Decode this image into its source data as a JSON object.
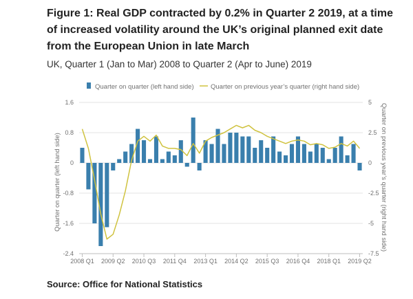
{
  "header": {
    "title": "Figure 1: Real GDP contracted by 0.2% in Quarter 2 2019, at a time of increased volatility around the UK’s original planned exit date from the European Union in late March",
    "subtitle": "UK, Quarter 1 (Jan to Mar) 2008 to Quarter 2 (Apr to June) 2019"
  },
  "footer": {
    "source": "Source: Office for National Statistics"
  },
  "chart_data": {
    "type": "bar",
    "title": "Figure 1: Real GDP contracted by 0.2% in Quarter 2 2019, at a time of increased volatility around the UK’s original planned exit date from the European Union in late March",
    "subtitle": "UK, Quarter 1 (Jan to Mar) 2008 to Quarter 2 (Apr to June) 2019",
    "xlabel": "",
    "ylabel_left": "Quarter on quarter (left hand side)",
    "ylabel_right": "Quarter on previous year’s quarter (right hand side)",
    "ylim_left": [
      -2.4,
      1.6
    ],
    "ylim_right": [
      -7.5,
      5
    ],
    "yticks_left": [
      "1.6",
      "0.8",
      "0",
      "-0.8",
      "-1.6",
      "-2.4"
    ],
    "yticks_left_values": [
      1.6,
      0.8,
      0,
      -0.8,
      -1.6,
      -2.4
    ],
    "yticks_right": [
      "5",
      "2.5",
      "0",
      "-2.5",
      "-5",
      "-7.5"
    ],
    "yticks_right_values": [
      5,
      2.5,
      0,
      -2.5,
      -5,
      -7.5
    ],
    "xtick_labels": [
      "2008 Q1",
      "2009 Q2",
      "2010 Q3",
      "2011 Q4",
      "2013 Q1",
      "2014 Q2",
      "2015 Q3",
      "2016 Q4",
      "2018 Q1",
      "2019 Q2"
    ],
    "xtick_indices": [
      0,
      5,
      10,
      15,
      20,
      25,
      30,
      35,
      40,
      45
    ],
    "legend_position": "top",
    "colors": {
      "bars": "#3a7fad",
      "line": "#cfc23e",
      "grid": "#e3e3e3"
    },
    "categories": [
      "2008 Q1",
      "2008 Q2",
      "2008 Q3",
      "2008 Q4",
      "2009 Q1",
      "2009 Q2",
      "2009 Q3",
      "2009 Q4",
      "2010 Q1",
      "2010 Q2",
      "2010 Q3",
      "2010 Q4",
      "2011 Q1",
      "2011 Q2",
      "2011 Q3",
      "2011 Q4",
      "2012 Q1",
      "2012 Q2",
      "2012 Q3",
      "2012 Q4",
      "2013 Q1",
      "2013 Q2",
      "2013 Q3",
      "2013 Q4",
      "2014 Q1",
      "2014 Q2",
      "2014 Q3",
      "2014 Q4",
      "2015 Q1",
      "2015 Q2",
      "2015 Q3",
      "2015 Q4",
      "2016 Q1",
      "2016 Q2",
      "2016 Q3",
      "2016 Q4",
      "2017 Q1",
      "2017 Q2",
      "2017 Q3",
      "2017 Q4",
      "2018 Q1",
      "2018 Q2",
      "2018 Q3",
      "2018 Q4",
      "2019 Q1",
      "2019 Q2"
    ],
    "series": [
      {
        "name": "Quarter on quarter (left hand side)",
        "axis": "left",
        "type": "bar",
        "values": [
          0.4,
          -0.7,
          -1.6,
          -2.2,
          -1.7,
          -0.2,
          0.1,
          0.3,
          0.5,
          0.9,
          0.6,
          0.1,
          0.7,
          0.1,
          0.3,
          0.2,
          0.6,
          -0.1,
          1.2,
          -0.2,
          0.6,
          0.5,
          0.9,
          0.5,
          0.8,
          0.8,
          0.7,
          0.7,
          0.4,
          0.6,
          0.4,
          0.7,
          0.3,
          0.2,
          0.5,
          0.7,
          0.5,
          0.3,
          0.5,
          0.4,
          0.1,
          0.4,
          0.7,
          0.2,
          0.5,
          -0.2
        ]
      },
      {
        "name": "Quarter on previous year’s quarter (right hand side)",
        "axis": "right",
        "type": "line",
        "values": [
          2.8,
          1.2,
          -1.4,
          -4.2,
          -6.3,
          -5.9,
          -4.3,
          -2.3,
          0.2,
          1.8,
          2.2,
          1.8,
          2.3,
          1.4,
          1.2,
          1.2,
          1.1,
          0.6,
          1.6,
          0.8,
          1.8,
          2.1,
          2.3,
          2.5,
          2.8,
          3.1,
          2.9,
          3.1,
          2.7,
          2.5,
          2.2,
          2.0,
          1.8,
          1.6,
          1.8,
          1.9,
          1.8,
          1.5,
          1.6,
          1.5,
          1.2,
          1.3,
          1.6,
          1.4,
          1.8,
          1.2
        ]
      }
    ]
  }
}
